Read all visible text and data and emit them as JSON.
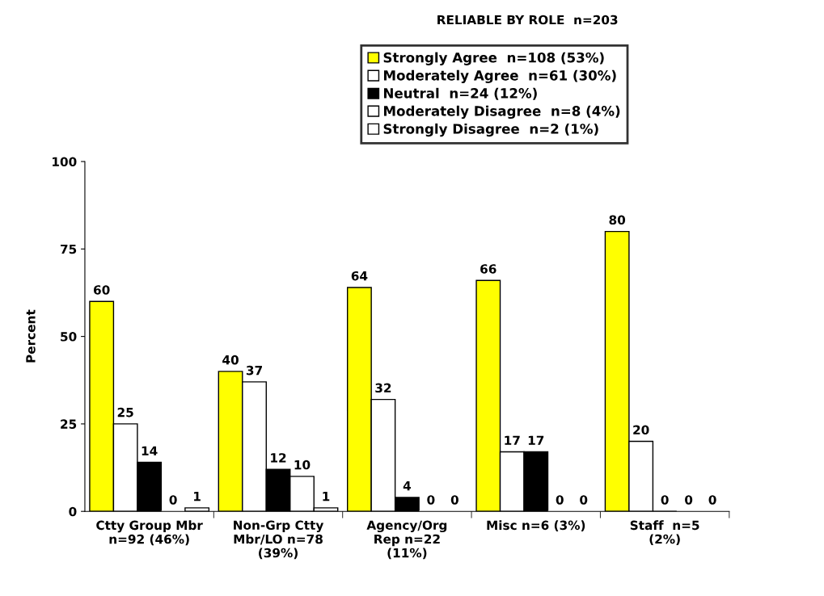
{
  "chart_data": {
    "type": "bar",
    "title": "RELIABLE BY ROLE  n=203",
    "ylabel": "Percent",
    "categories": [
      "Ctty Group Mbr\nn=92 (46%)",
      "Non-Grp Ctty\nMbr/LO n=78\n(39%)",
      "Agency/Org\nRep n=22\n(11%)",
      "Misc n=6 (3%)",
      "Staff  n=5\n(2%)"
    ],
    "series": [
      {
        "name": "Strongly Agree  n=108 (53%)",
        "color": "#ffff00",
        "values": [
          60,
          40,
          64,
          66,
          80
        ]
      },
      {
        "name": "Moderately Agree  n=61 (30%)",
        "color": "#ffffff",
        "values": [
          25,
          37,
          32,
          17,
          20
        ]
      },
      {
        "name": "Neutral  n=24 (12%)",
        "color": "#000000",
        "values": [
          14,
          12,
          4,
          17,
          0
        ]
      },
      {
        "name": "Moderately Disagree  n=8 (4%)",
        "color": "#ffffff",
        "values": [
          0,
          10,
          0,
          0,
          0
        ]
      },
      {
        "name": "Strongly Disagree  n=2 (1%)",
        "color": "#ffffff",
        "values": [
          1,
          1,
          0,
          0,
          0
        ]
      }
    ],
    "ylim": [
      0,
      100
    ],
    "yticks": [
      0,
      25,
      50,
      75,
      100
    ],
    "data_labels": true,
    "grid": false,
    "legend": "top right"
  }
}
